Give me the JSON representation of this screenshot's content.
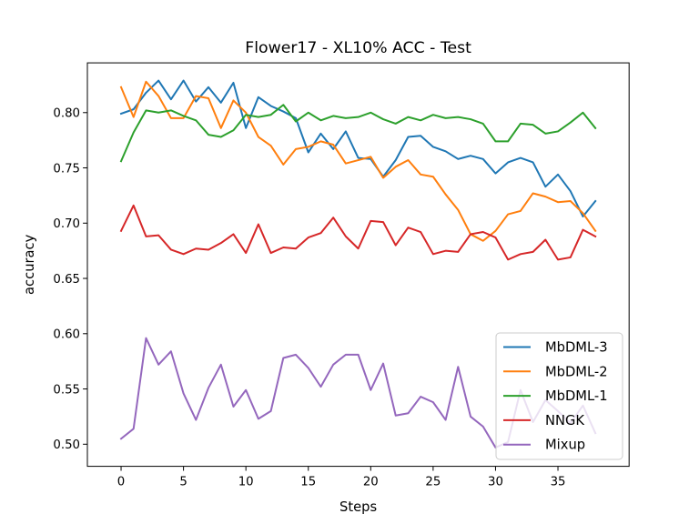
{
  "chart_data": {
    "type": "line",
    "title": "Flower17 - XL10% ACC - Test",
    "xlabel": "Steps",
    "ylabel": "accuracy",
    "xlim": [
      -2.7,
      40.7
    ],
    "ylim": [
      0.48,
      0.845
    ],
    "xticks": [
      0,
      5,
      10,
      15,
      20,
      25,
      30,
      35
    ],
    "xtick_labels": [
      "0",
      "5",
      "10",
      "15",
      "20",
      "25",
      "30",
      "35"
    ],
    "yticks": [
      0.5,
      0.55,
      0.6,
      0.65,
      0.7,
      0.75,
      0.8
    ],
    "ytick_labels": [
      "0.50",
      "0.55",
      "0.60",
      "0.65",
      "0.70",
      "0.75",
      "0.80"
    ],
    "grid": false,
    "legend_position": "lower-right",
    "x": [
      0,
      1,
      2,
      3,
      4,
      5,
      6,
      7,
      8,
      9,
      10,
      11,
      12,
      13,
      14,
      15,
      16,
      17,
      18,
      19,
      20,
      21,
      22,
      23,
      24,
      25,
      26,
      27,
      28,
      29,
      30,
      31,
      32,
      33,
      34,
      35,
      36,
      37,
      38
    ],
    "series": [
      {
        "name": "MbDML-3",
        "color": "#1f77b4",
        "values": [
          0.799,
          0.803,
          0.818,
          0.829,
          0.812,
          0.829,
          0.81,
          0.823,
          0.809,
          0.827,
          0.786,
          0.814,
          0.806,
          0.801,
          0.795,
          0.764,
          0.781,
          0.767,
          0.783,
          0.759,
          0.758,
          0.742,
          0.757,
          0.778,
          0.779,
          0.769,
          0.765,
          0.758,
          0.761,
          0.758,
          0.745,
          0.755,
          0.759,
          0.755,
          0.733,
          0.744,
          0.729,
          0.706,
          0.72
        ]
      },
      {
        "name": "MbDML-2",
        "color": "#ff7f0e",
        "values": [
          0.823,
          0.796,
          0.828,
          0.815,
          0.795,
          0.795,
          0.815,
          0.813,
          0.786,
          0.811,
          0.8,
          0.778,
          0.77,
          0.753,
          0.767,
          0.769,
          0.774,
          0.771,
          0.754,
          0.757,
          0.76,
          0.741,
          0.751,
          0.757,
          0.744,
          0.742,
          0.726,
          0.712,
          0.69,
          0.684,
          0.693,
          0.708,
          0.711,
          0.727,
          0.724,
          0.719,
          0.72,
          0.709,
          0.693
        ]
      },
      {
        "name": "MbDML-1",
        "color": "#2ca02c",
        "values": [
          0.756,
          0.782,
          0.802,
          0.8,
          0.802,
          0.797,
          0.793,
          0.78,
          0.778,
          0.784,
          0.798,
          0.796,
          0.798,
          0.807,
          0.792,
          0.8,
          0.793,
          0.797,
          0.795,
          0.796,
          0.8,
          0.794,
          0.79,
          0.796,
          0.793,
          0.798,
          0.795,
          0.796,
          0.794,
          0.79,
          0.774,
          0.774,
          0.79,
          0.789,
          0.781,
          0.783,
          0.791,
          0.8,
          0.786
        ]
      },
      {
        "name": "NNGK",
        "color": "#d62728",
        "values": [
          0.693,
          0.716,
          0.688,
          0.689,
          0.676,
          0.672,
          0.677,
          0.676,
          0.682,
          0.69,
          0.673,
          0.699,
          0.673,
          0.678,
          0.677,
          0.687,
          0.691,
          0.705,
          0.688,
          0.677,
          0.702,
          0.701,
          0.68,
          0.696,
          0.692,
          0.672,
          0.675,
          0.674,
          0.69,
          0.692,
          0.687,
          0.667,
          0.672,
          0.674,
          0.685,
          0.667,
          0.669,
          0.694,
          0.688
        ]
      },
      {
        "name": "Mixup",
        "color": "#9467bd",
        "values": [
          0.505,
          0.514,
          0.596,
          0.572,
          0.584,
          0.546,
          0.522,
          0.551,
          0.572,
          0.534,
          0.549,
          0.523,
          0.53,
          0.578,
          0.581,
          0.569,
          0.552,
          0.572,
          0.581,
          0.581,
          0.549,
          0.573,
          0.526,
          0.528,
          0.543,
          0.538,
          0.522,
          0.57,
          0.525,
          0.516,
          0.497,
          0.502,
          0.549,
          0.52,
          0.54,
          0.53,
          0.519,
          0.535,
          0.51
        ]
      }
    ]
  }
}
